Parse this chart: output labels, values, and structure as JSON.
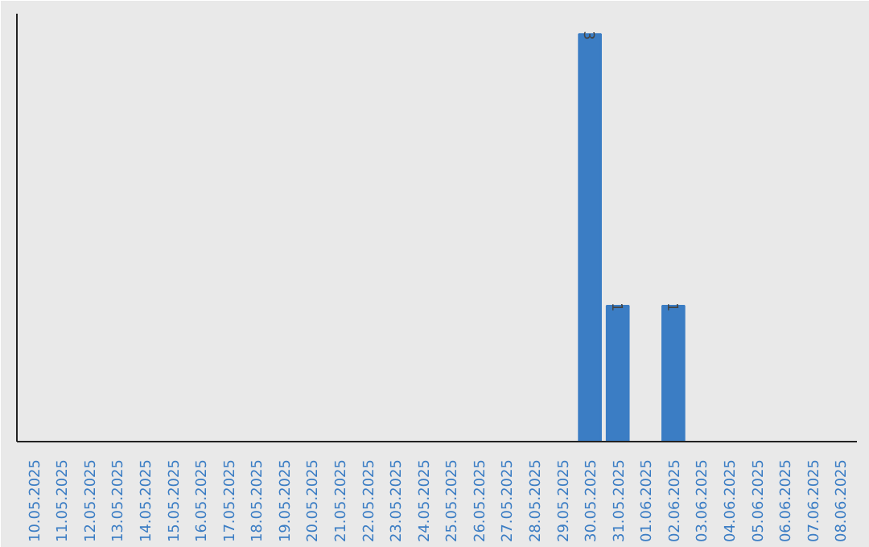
{
  "chart_data": {
    "type": "bar",
    "categories": [
      "10.05.2025",
      "11.05.2025",
      "12.05.2025",
      "13.05.2025",
      "14.05.2025",
      "15.05.2025",
      "16.05.2025",
      "17.05.2025",
      "18.05.2025",
      "19.05.2025",
      "20.05.2025",
      "21.05.2025",
      "22.05.2025",
      "23.05.2025",
      "24.05.2025",
      "25.05.2025",
      "26.05.2025",
      "27.05.2025",
      "28.05.2025",
      "29.05.2025",
      "30.05.2025",
      "31.05.2025",
      "01.06.2025",
      "02.06.2025",
      "03.06.2025",
      "04.06.2025",
      "05.06.2025",
      "06.06.2025",
      "07.06.2025",
      "08.06.2025"
    ],
    "values": [
      null,
      null,
      null,
      null,
      null,
      null,
      null,
      null,
      null,
      null,
      null,
      null,
      null,
      null,
      null,
      null,
      null,
      null,
      null,
      null,
      3,
      1,
      null,
      1,
      null,
      null,
      null,
      null,
      null,
      null
    ],
    "value_labels": [
      null,
      null,
      null,
      null,
      null,
      null,
      null,
      null,
      null,
      null,
      null,
      null,
      null,
      null,
      null,
      null,
      null,
      null,
      null,
      null,
      "3",
      "1",
      null,
      "1",
      null,
      null,
      null,
      null,
      null,
      null
    ],
    "color": "#3b7dc4"
  }
}
